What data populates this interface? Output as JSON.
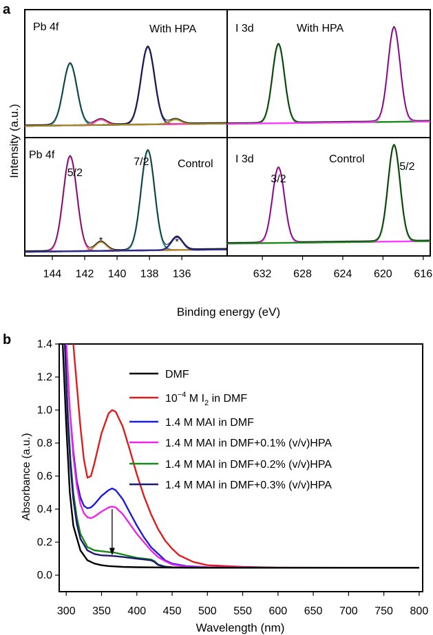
{
  "chart_data": [
    {
      "panel": "a",
      "type": "line",
      "xlabel": "Binding energy (eV)",
      "ylabel": "Intensity (a.u.)",
      "subplots": [
        {
          "id": "pb-hpa",
          "label": "Pb 4f",
          "condition": "With HPA",
          "xlim": [
            145.7,
            133.2
          ],
          "peaks": [
            {
              "center": 142.9,
              "height": 0.78,
              "width": 0.42,
              "color": "#2a8a8a"
            },
            {
              "center": 138.1,
              "height": 0.98,
              "width": 0.42,
              "color": "#2c2c8f"
            },
            {
              "center": 141.0,
              "height": 0.07,
              "width": 0.35,
              "color": "#ff3ca8"
            },
            {
              "center": 136.4,
              "height": 0.06,
              "width": 0.35,
              "color": "#a08a2a"
            }
          ],
          "baseline_color": "#2c2c8f"
        },
        {
          "id": "pb-control",
          "label": "Pb 4f",
          "condition": "Control",
          "xlim": [
            145.7,
            133.2
          ],
          "peak_labels": [
            {
              "text": "5/2",
              "x": 142.6
            },
            {
              "text": "7/2",
              "x": 138.5
            },
            {
              "text": "*",
              "x": 141.0
            },
            {
              "text": "*",
              "x": 136.3
            }
          ],
          "peaks": [
            {
              "center": 142.9,
              "height": 0.95,
              "width": 0.42,
              "color": "#ff3cd0"
            },
            {
              "center": 138.1,
              "height": 1.0,
              "width": 0.42,
              "color": "#2a8a8a"
            },
            {
              "center": 141.0,
              "height": 0.09,
              "width": 0.35,
              "color": "#b8862a"
            },
            {
              "center": 136.3,
              "height": 0.13,
              "width": 0.35,
              "color": "#2c2c8f"
            }
          ],
          "baseline_color": "#2c2c8f"
        },
        {
          "id": "i-hpa",
          "label": "I 3d",
          "condition": "With HPA",
          "xlim": [
            635.5,
            615.3
          ],
          "peaks": [
            {
              "center": 630.4,
              "height": 0.82,
              "width": 0.6,
              "color": "#1f8a1f"
            },
            {
              "center": 618.9,
              "height": 0.98,
              "width": 0.6,
              "color": "#ff3cff"
            }
          ],
          "baseline_color": "#1f8a1f"
        },
        {
          "id": "i-control",
          "label": "I 3d",
          "condition": "Control",
          "xlim": [
            635.5,
            615.3
          ],
          "peak_labels": [
            {
              "text": "3/2",
              "x": 630.4
            },
            {
              "text": "5/2",
              "x": 617.6
            }
          ],
          "peaks": [
            {
              "center": 630.4,
              "height": 0.78,
              "width": 0.6,
              "color": "#ff3cff"
            },
            {
              "center": 618.9,
              "height": 1.0,
              "width": 0.6,
              "color": "#1f8a1f"
            }
          ],
          "baseline_color": "#1f8a1f"
        }
      ],
      "xticks_left": [
        "144",
        "142",
        "140",
        "138",
        "136"
      ],
      "xticks_right": [
        "632",
        "628",
        "624",
        "620",
        "616"
      ]
    },
    {
      "panel": "b",
      "type": "line",
      "xlabel": "Wavelength (nm)",
      "ylabel": "Absorbance (a.u.)",
      "xlim": [
        290,
        805
      ],
      "ylim": [
        -0.1,
        1.4
      ],
      "xticks": [
        300,
        350,
        400,
        450,
        500,
        550,
        600,
        650,
        700,
        750,
        800
      ],
      "yticks": [
        "0.0",
        "0.2",
        "0.4",
        "0.6",
        "0.8",
        "1.0",
        "1.2",
        "1.4"
      ],
      "annotation": "arrow at 365 nm from 0.40 down to 0.12",
      "series": [
        {
          "name": "DMF",
          "color": "#000000",
          "x": [
            295,
            300,
            305,
            310,
            320,
            330,
            340,
            350,
            360,
            380,
            400,
            450,
            500,
            600,
            700,
            800
          ],
          "y": [
            1.4,
            0.9,
            0.5,
            0.3,
            0.15,
            0.09,
            0.07,
            0.06,
            0.055,
            0.05,
            0.048,
            0.046,
            0.045,
            0.045,
            0.045,
            0.045
          ]
        },
        {
          "name": "10⁻⁴ M I₂ in DMF",
          "color": "#e11a1a",
          "x": [
            310,
            315,
            320,
            325,
            330,
            335,
            340,
            350,
            360,
            365,
            370,
            380,
            390,
            400,
            410,
            420,
            430,
            440,
            450,
            460,
            480,
            500,
            550,
            600,
            700,
            800
          ],
          "y": [
            1.4,
            1.15,
            0.9,
            0.7,
            0.59,
            0.6,
            0.68,
            0.86,
            0.98,
            1.0,
            0.99,
            0.9,
            0.76,
            0.61,
            0.48,
            0.37,
            0.28,
            0.21,
            0.16,
            0.12,
            0.08,
            0.06,
            0.05,
            0.046,
            0.045,
            0.045
          ]
        },
        {
          "name": "1.4 M MAI in DMF",
          "color": "#1a1ae0",
          "x": [
            300,
            305,
            310,
            315,
            320,
            325,
            330,
            335,
            340,
            350,
            360,
            365,
            370,
            380,
            390,
            400,
            410,
            420,
            430,
            440,
            450,
            470,
            500,
            600,
            700,
            800
          ],
          "y": [
            1.4,
            1.0,
            0.75,
            0.57,
            0.47,
            0.42,
            0.405,
            0.41,
            0.43,
            0.48,
            0.515,
            0.525,
            0.515,
            0.46,
            0.38,
            0.3,
            0.23,
            0.17,
            0.13,
            0.09,
            0.07,
            0.055,
            0.048,
            0.045,
            0.045,
            0.045
          ]
        },
        {
          "name": "1.4 M MAI in DMF+0.1% (v/v)HPA",
          "color": "#ee22ee",
          "x": [
            300,
            305,
            310,
            315,
            320,
            325,
            330,
            335,
            340,
            350,
            360,
            365,
            370,
            380,
            390,
            400,
            410,
            420,
            430,
            440,
            450,
            470,
            500,
            600,
            700,
            800
          ],
          "y": [
            1.4,
            1.0,
            0.72,
            0.54,
            0.43,
            0.375,
            0.35,
            0.345,
            0.355,
            0.385,
            0.41,
            0.415,
            0.41,
            0.37,
            0.31,
            0.25,
            0.2,
            0.15,
            0.11,
            0.085,
            0.065,
            0.052,
            0.047,
            0.045,
            0.045,
            0.045
          ]
        },
        {
          "name": "1.4 M MAI in DMF+0.2% (v/v)HPA",
          "color": "#168a16",
          "x": [
            298,
            302,
            306,
            310,
            315,
            320,
            330,
            340,
            350,
            360,
            370,
            380,
            390,
            400,
            410,
            420,
            425,
            430,
            440,
            450,
            470,
            500,
            600,
            700,
            800
          ],
          "y": [
            1.4,
            1.0,
            0.7,
            0.5,
            0.35,
            0.25,
            0.17,
            0.15,
            0.145,
            0.14,
            0.135,
            0.125,
            0.115,
            0.105,
            0.1,
            0.095,
            0.085,
            0.065,
            0.052,
            0.048,
            0.046,
            0.045,
            0.045,
            0.045,
            0.045
          ]
        },
        {
          "name": "1.4 M MAI in DMF+0.3% (v/v)HPA",
          "color": "#1a1a70",
          "x": [
            298,
            302,
            306,
            310,
            315,
            320,
            330,
            340,
            350,
            360,
            370,
            380,
            390,
            400,
            410,
            420,
            425,
            430,
            440,
            450,
            470,
            500,
            600,
            700,
            800
          ],
          "y": [
            1.4,
            0.95,
            0.66,
            0.46,
            0.31,
            0.22,
            0.15,
            0.128,
            0.12,
            0.118,
            0.115,
            0.11,
            0.105,
            0.1,
            0.095,
            0.09,
            0.08,
            0.062,
            0.05,
            0.047,
            0.046,
            0.045,
            0.045,
            0.045,
            0.045
          ]
        }
      ]
    }
  ]
}
